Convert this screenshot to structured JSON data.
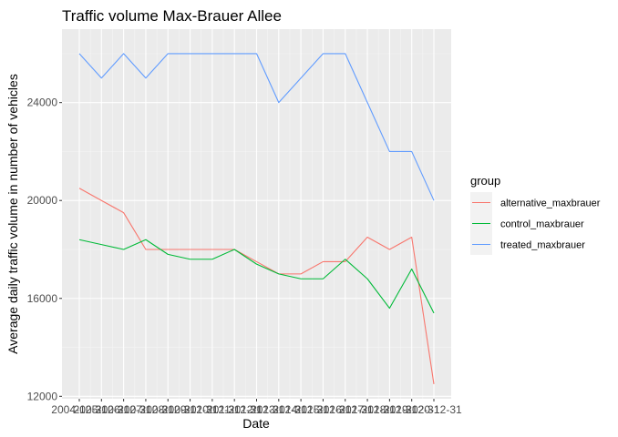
{
  "chart_data": {
    "type": "line",
    "title": "Traffic volume Max-Brauer Allee",
    "xlabel": "Date",
    "ylabel": "Average daily traffic volume in number of vehicles",
    "x": [
      "2004-12-31",
      "2005-12-31",
      "2006-12-31",
      "2007-12-31",
      "2008-12-31",
      "2009-12-31",
      "2010-12-31",
      "2011-12-31",
      "2012-12-31",
      "2013-12-31",
      "2014-12-31",
      "2015-12-31",
      "2016-12-31",
      "2017-12-31",
      "2018-12-31",
      "2019-12-31",
      "2020-12-31"
    ],
    "x_tick_labels": [
      "2004-12-31",
      "2005-12-31",
      "2006-12-31",
      "2007-12-31",
      "2008-12-31",
      "2009-12-31",
      "2010-12-31",
      "2011-12-31",
      "2012-12-31",
      "2013-12-31",
      "2014-12-31",
      "2015-12-31",
      "2016-12-31",
      "2017-12-31",
      "2018-12-31",
      "2019-12-31",
      "2020-12-31"
    ],
    "y_ticks": [
      12000,
      16000,
      20000,
      24000
    ],
    "y_tick_labels": [
      "12000",
      "16000",
      "20000",
      "24000"
    ],
    "ylim": [
      11900,
      27000
    ],
    "grid": true,
    "legend": {
      "title": "group",
      "position": "right"
    },
    "series": [
      {
        "name": "alternative_maxbrauer",
        "color": "#F8766D",
        "values": [
          20500,
          20000,
          19500,
          18000,
          18000,
          18000,
          18000,
          18000,
          17500,
          17000,
          17000,
          17500,
          17500,
          18500,
          18000,
          18500,
          12500
        ]
      },
      {
        "name": "control_maxbrauer",
        "color": "#00BA38",
        "values": [
          18400,
          18200,
          18000,
          18400,
          17800,
          17600,
          17600,
          18000,
          17400,
          17000,
          16800,
          16800,
          17600,
          16800,
          15600,
          17200,
          15400
        ]
      },
      {
        "name": "treated_maxbrauer",
        "color": "#619CFF",
        "values": [
          26000,
          25000,
          26000,
          25000,
          26000,
          26000,
          26000,
          26000,
          26000,
          24000,
          25000,
          26000,
          26000,
          24000,
          22000,
          22000,
          20000
        ]
      }
    ],
    "colors": {
      "panel_background": "#EBEBEB",
      "grid_major": "#FFFFFF",
      "grid_minor": "#F5F5F5",
      "legend_key_background": "#F2F2F2"
    }
  }
}
